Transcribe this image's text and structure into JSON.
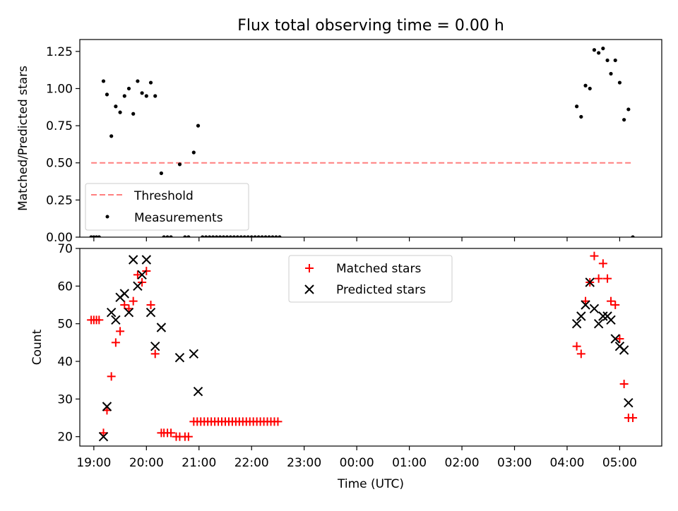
{
  "figure": {
    "title": "Flux total observing time = 0.00 h",
    "xlabel": "Time (UTC)"
  },
  "chart_data": [
    {
      "type": "scatter",
      "id": "ratio",
      "title": "Flux total observing time = 0.00 h",
      "ylabel": "Matched/Predicted stars",
      "xlabel": "",
      "xlim": [
        "18:44",
        "05:48"
      ],
      "ylim": [
        0,
        1.33
      ],
      "yticks": [
        0.0,
        0.25,
        0.5,
        0.75,
        1.0,
        1.25
      ],
      "ytick_labels": [
        "0.00",
        "0.25",
        "0.50",
        "0.75",
        "1.00",
        "1.25"
      ],
      "legend": {
        "placement": "lower-left",
        "entries": [
          {
            "label": "Threshold",
            "style": "dashed-line",
            "color": "#ff7f7f"
          },
          {
            "label": "Measurements",
            "style": "dot",
            "color": "#000000"
          }
        ]
      },
      "series": [
        {
          "name": "Threshold",
          "kind": "line",
          "color": "#ff7f7f",
          "dashed": true,
          "points": [
            [
              "18:57",
              0.5
            ],
            [
              "05:14",
              0.5
            ]
          ]
        },
        {
          "name": "Measurements",
          "kind": "dot",
          "color": "#000000",
          "points": [
            [
              "18:57",
              0.0
            ],
            [
              "19:00",
              0.0
            ],
            [
              "19:03",
              0.0
            ],
            [
              "19:06",
              0.0
            ],
            [
              "19:11",
              1.05
            ],
            [
              "19:15",
              0.96
            ],
            [
              "19:20",
              0.68
            ],
            [
              "19:25",
              0.88
            ],
            [
              "19:30",
              0.84
            ],
            [
              "19:35",
              0.95
            ],
            [
              "19:40",
              1.0
            ],
            [
              "19:45",
              0.83
            ],
            [
              "19:50",
              1.05
            ],
            [
              "19:55",
              0.97
            ],
            [
              "20:00",
              0.95
            ],
            [
              "20:05",
              1.04
            ],
            [
              "20:10",
              0.95
            ],
            [
              "20:17",
              0.43
            ],
            [
              "20:20",
              0.0
            ],
            [
              "20:24",
              0.0
            ],
            [
              "20:28",
              0.0
            ],
            [
              "20:38",
              0.49
            ],
            [
              "20:44",
              0.0
            ],
            [
              "20:48",
              0.0
            ],
            [
              "20:54",
              0.57
            ],
            [
              "20:59",
              0.75
            ],
            [
              "21:04",
              0.0
            ],
            [
              "21:08",
              0.0
            ],
            [
              "21:12",
              0.0
            ],
            [
              "21:16",
              0.0
            ],
            [
              "21:20",
              0.0
            ],
            [
              "21:24",
              0.0
            ],
            [
              "21:28",
              0.0
            ],
            [
              "21:32",
              0.0
            ],
            [
              "21:36",
              0.0
            ],
            [
              "21:40",
              0.0
            ],
            [
              "21:44",
              0.0
            ],
            [
              "21:48",
              0.0
            ],
            [
              "21:52",
              0.0
            ],
            [
              "21:56",
              0.0
            ],
            [
              "22:00",
              0.0
            ],
            [
              "22:04",
              0.0
            ],
            [
              "22:08",
              0.0
            ],
            [
              "22:12",
              0.0
            ],
            [
              "22:16",
              0.0
            ],
            [
              "22:20",
              0.0
            ],
            [
              "22:24",
              0.0
            ],
            [
              "22:28",
              0.0
            ],
            [
              "22:32",
              0.0
            ],
            [
              "04:11",
              0.88
            ],
            [
              "04:16",
              0.81
            ],
            [
              "04:21",
              1.02
            ],
            [
              "04:26",
              1.0
            ],
            [
              "04:31",
              1.26
            ],
            [
              "04:36",
              1.24
            ],
            [
              "04:41",
              1.27
            ],
            [
              "04:46",
              1.19
            ],
            [
              "04:50",
              1.1
            ],
            [
              "04:55",
              1.19
            ],
            [
              "05:00",
              1.04
            ],
            [
              "05:05",
              0.79
            ],
            [
              "05:10",
              0.86
            ],
            [
              "05:15",
              0.0
            ]
          ]
        }
      ]
    },
    {
      "type": "scatter",
      "id": "counts",
      "title": "",
      "ylabel": "Count",
      "xlabel": "Time (UTC)",
      "xlim": [
        "18:44",
        "05:48"
      ],
      "ylim": [
        17.5,
        70
      ],
      "yticks": [
        20,
        30,
        40,
        50,
        60,
        70
      ],
      "ytick_labels": [
        "20",
        "30",
        "40",
        "50",
        "60",
        "70"
      ],
      "xticks": [
        "19:00",
        "20:00",
        "21:00",
        "22:00",
        "23:00",
        "00:00",
        "01:00",
        "02:00",
        "03:00",
        "04:00",
        "05:00"
      ],
      "legend": {
        "placement": "upper-center",
        "entries": [
          {
            "label": "Matched stars",
            "style": "plus",
            "color": "#ff0000"
          },
          {
            "label": "Predicted stars",
            "style": "cross",
            "color": "#000000"
          }
        ]
      },
      "series": [
        {
          "name": "Matched stars",
          "kind": "plus",
          "color": "#ff0000",
          "points": [
            [
              "18:57",
              51
            ],
            [
              "19:00",
              51
            ],
            [
              "19:03",
              51
            ],
            [
              "19:06",
              51
            ],
            [
              "19:11",
              21
            ],
            [
              "19:15",
              27
            ],
            [
              "19:20",
              36
            ],
            [
              "19:25",
              45
            ],
            [
              "19:30",
              48
            ],
            [
              "19:35",
              55
            ],
            [
              "19:40",
              54
            ],
            [
              "19:45",
              56
            ],
            [
              "19:50",
              63
            ],
            [
              "19:55",
              61
            ],
            [
              "20:00",
              64
            ],
            [
              "20:05",
              55
            ],
            [
              "20:10",
              42
            ],
            [
              "20:17",
              21
            ],
            [
              "20:20",
              21
            ],
            [
              "20:24",
              21
            ],
            [
              "20:28",
              21
            ],
            [
              "20:34",
              20
            ],
            [
              "20:38",
              20
            ],
            [
              "20:44",
              20
            ],
            [
              "20:48",
              20
            ],
            [
              "20:54",
              24
            ],
            [
              "20:58",
              24
            ],
            [
              "21:02",
              24
            ],
            [
              "21:06",
              24
            ],
            [
              "21:10",
              24
            ],
            [
              "21:14",
              24
            ],
            [
              "21:18",
              24
            ],
            [
              "21:22",
              24
            ],
            [
              "21:26",
              24
            ],
            [
              "21:30",
              24
            ],
            [
              "21:34",
              24
            ],
            [
              "21:38",
              24
            ],
            [
              "21:42",
              24
            ],
            [
              "21:46",
              24
            ],
            [
              "21:50",
              24
            ],
            [
              "21:54",
              24
            ],
            [
              "21:58",
              24
            ],
            [
              "22:02",
              24
            ],
            [
              "22:06",
              24
            ],
            [
              "22:10",
              24
            ],
            [
              "22:14",
              24
            ],
            [
              "22:18",
              24
            ],
            [
              "22:22",
              24
            ],
            [
              "22:26",
              24
            ],
            [
              "22:30",
              24
            ],
            [
              "04:11",
              44
            ],
            [
              "04:16",
              42
            ],
            [
              "04:21",
              56
            ],
            [
              "04:26",
              61
            ],
            [
              "04:31",
              68
            ],
            [
              "04:36",
              62
            ],
            [
              "04:41",
              66
            ],
            [
              "04:46",
              62
            ],
            [
              "04:50",
              56
            ],
            [
              "04:55",
              55
            ],
            [
              "05:00",
              46
            ],
            [
              "05:05",
              34
            ],
            [
              "05:10",
              25
            ],
            [
              "05:15",
              25
            ]
          ]
        },
        {
          "name": "Predicted stars",
          "kind": "cross",
          "color": "#000000",
          "points": [
            [
              "19:11",
              20
            ],
            [
              "19:15",
              28
            ],
            [
              "19:20",
              53
            ],
            [
              "19:25",
              51
            ],
            [
              "19:30",
              57
            ],
            [
              "19:35",
              58
            ],
            [
              "19:40",
              53
            ],
            [
              "19:45",
              67
            ],
            [
              "19:50",
              60
            ],
            [
              "19:55",
              63
            ],
            [
              "20:00",
              67
            ],
            [
              "20:05",
              53
            ],
            [
              "20:10",
              44
            ],
            [
              "20:17",
              49
            ],
            [
              "20:38",
              41
            ],
            [
              "20:54",
              42
            ],
            [
              "20:59",
              32
            ],
            [
              "04:11",
              50
            ],
            [
              "04:16",
              52
            ],
            [
              "04:21",
              55
            ],
            [
              "04:26",
              61
            ],
            [
              "04:31",
              54
            ],
            [
              "04:36",
              50
            ],
            [
              "04:41",
              52
            ],
            [
              "04:46",
              52
            ],
            [
              "04:50",
              51
            ],
            [
              "04:55",
              46
            ],
            [
              "05:00",
              44
            ],
            [
              "05:05",
              43
            ],
            [
              "05:10",
              29
            ]
          ]
        }
      ]
    }
  ]
}
